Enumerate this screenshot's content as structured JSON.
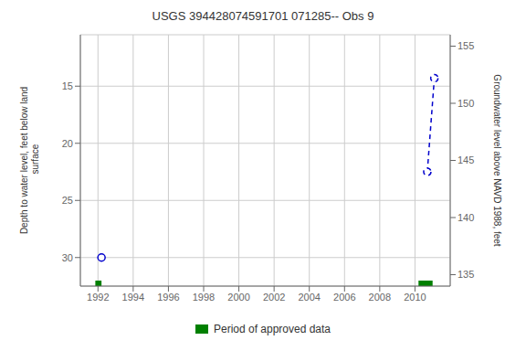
{
  "chart_data": {
    "type": "line",
    "title": "USGS 394428074591701 071285-- Obs 9",
    "ylabel": "Depth to water level, feet below land\n surface",
    "y2label": "Groundwater level above NAVD 1988, feet",
    "xlim": [
      1991.0,
      2012.0
    ],
    "xticks": [
      1992,
      1994,
      1996,
      1998,
      2000,
      2002,
      2004,
      2006,
      2008,
      2010
    ],
    "ylim": [
      32.5,
      10.5
    ],
    "yticks": [
      15,
      20,
      25,
      30
    ],
    "y2lim": [
      134.0,
      156.0
    ],
    "y2ticks": [
      135,
      140,
      145,
      150,
      155
    ],
    "grid": true,
    "legend": "bottom",
    "series": [
      {
        "color": "#0000cc",
        "marker": "o",
        "line_style": "none",
        "x": [
          1992.2
        ],
        "values": [
          30.0
        ]
      },
      {
        "color": "#0000cc",
        "marker": "o",
        "line_style": "dashed",
        "x": [
          2010.7,
          2011.1
        ],
        "values": [
          22.5,
          14.3
        ]
      }
    ],
    "approved_periods": {
      "name": "Period of approved data",
      "color": "#008000",
      "x": [
        1991.85,
        2010.2
      ],
      "widths": [
        0.35,
        0.8
      ]
    }
  }
}
